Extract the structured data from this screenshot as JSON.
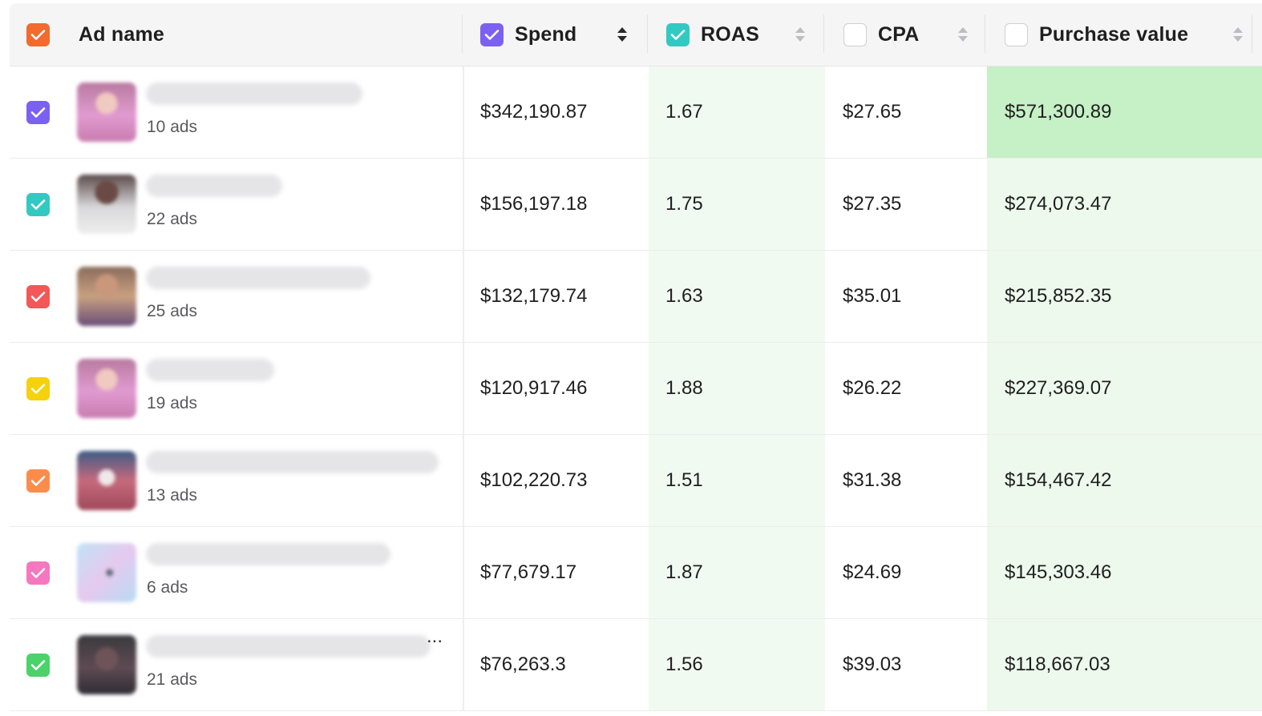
{
  "header": {
    "select_all_color": "#f26a2e",
    "columns": [
      {
        "key": "ad_name",
        "label": "Ad name"
      },
      {
        "key": "spend",
        "label": "Spend",
        "checked": true,
        "color": "#7b61f2",
        "sort": "desc"
      },
      {
        "key": "roas",
        "label": "ROAS",
        "checked": true,
        "color": "#33c9c3",
        "sort": "none"
      },
      {
        "key": "cpa",
        "label": "CPA",
        "checked": false,
        "sort": "none"
      },
      {
        "key": "purchase_value",
        "label": "Purchase value",
        "checked": false,
        "sort": "none"
      }
    ]
  },
  "rows": [
    {
      "checkbox_color": "#7b61f2",
      "ads": "10 ads",
      "spend": "$342,190.87",
      "roas": "1.67",
      "cpa": "$27.65",
      "purchase_value": "$571,300.89",
      "thumb": "pink-portrait"
    },
    {
      "checkbox_color": "#33c9c3",
      "ads": "22 ads",
      "spend": "$156,197.18",
      "roas": "1.75",
      "cpa": "$27.35",
      "purchase_value": "$274,073.47",
      "thumb": "white-portrait"
    },
    {
      "checkbox_color": "#f45757",
      "ads": "25 ads",
      "spend": "$132,179.74",
      "roas": "1.63",
      "cpa": "$35.01",
      "purchase_value": "$215,852.35",
      "thumb": "tan-portrait"
    },
    {
      "checkbox_color": "#f5d10e",
      "ads": "19 ads",
      "spend": "$120,917.46",
      "roas": "1.88",
      "cpa": "$26.22",
      "purchase_value": "$227,369.07",
      "thumb": "pink-portrait"
    },
    {
      "checkbox_color": "#fb8c4c",
      "ads": "13 ads",
      "spend": "$102,220.73",
      "roas": "1.51",
      "cpa": "$31.38",
      "purchase_value": "$154,467.42",
      "thumb": "red-portrait"
    },
    {
      "checkbox_color": "#f477bf",
      "ads": "6 ads",
      "spend": "$77,679.17",
      "roas": "1.87",
      "cpa": "$24.69",
      "purchase_value": "$145,303.46",
      "thumb": "light-blue-graphic"
    },
    {
      "checkbox_color": "#4bd26b",
      "ads": "21 ads",
      "spend": "$76,263.3",
      "roas": "1.56",
      "cpa": "$39.03",
      "purchase_value": "$118,667.03",
      "thumb": "dark-portrait",
      "name_ellipsis": "..."
    }
  ],
  "heat_colors": {
    "roas": "#f1faf1",
    "purchase_value_strong": "#c6f0c6",
    "purchase_value_light": "#edf9ed"
  }
}
